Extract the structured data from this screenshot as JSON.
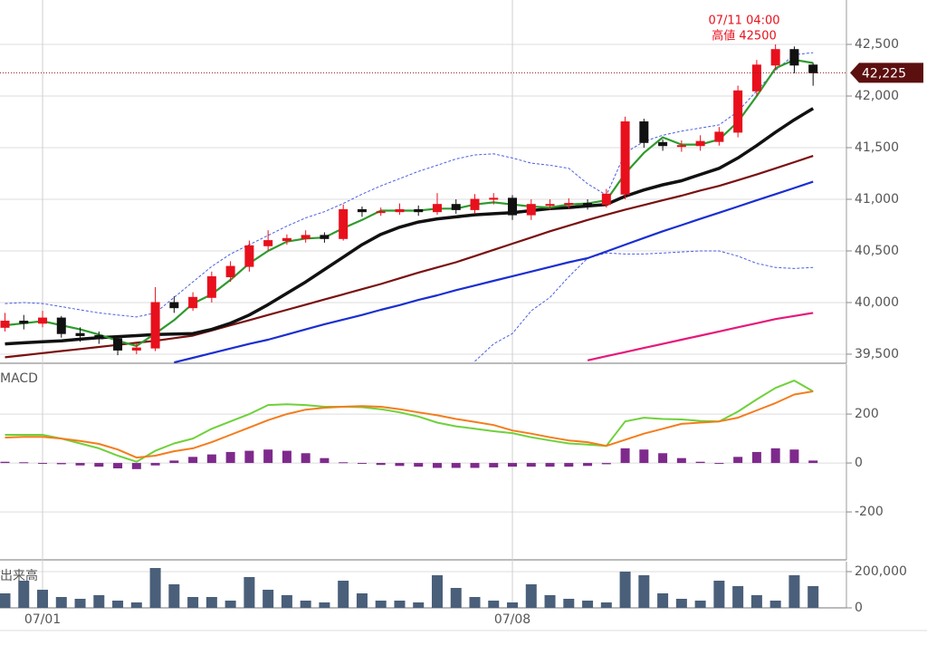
{
  "chart_data": [
    {
      "type": "candlestick",
      "ylim": [
        39412,
        42930
      ],
      "yticks": [
        {
          "value": 39500,
          "label": "39,500"
        },
        {
          "value": 40000,
          "label": "40,000"
        },
        {
          "value": 40500,
          "label": "40,500"
        },
        {
          "value": 41000,
          "label": "41,000"
        },
        {
          "value": 41500,
          "label": "41,500"
        },
        {
          "value": 42000,
          "label": "42,000"
        },
        {
          "value": 42500,
          "label": "42,500"
        }
      ],
      "grid": true,
      "up_color": "#e8101c",
      "down_color": "#111111",
      "open": [
        39760,
        39820,
        39800,
        39850,
        39700,
        39680,
        39650,
        39540,
        39560,
        40000,
        39950,
        40050,
        40250,
        40350,
        40550,
        40600,
        40620,
        40650,
        40620,
        40900,
        40880,
        40880,
        40900,
        40880,
        40950,
        40900,
        41000,
        41010,
        40850,
        40950,
        40950,
        40960,
        40950,
        41050,
        41750,
        41550,
        41520,
        41520,
        41560,
        41650,
        42050,
        42300,
        42450,
        42300
      ],
      "high": [
        39900,
        39880,
        39920,
        39870,
        39760,
        39720,
        39680,
        39600,
        40150,
        40060,
        40100,
        40300,
        40400,
        40600,
        40700,
        40660,
        40700,
        40680,
        40950,
        40930,
        40920,
        40960,
        40940,
        41060,
        41000,
        41050,
        41060,
        41040,
        41000,
        41000,
        41010,
        41000,
        41100,
        41800,
        41780,
        41580,
        41570,
        41620,
        41700,
        42100,
        42350,
        42500,
        42480,
        42320
      ],
      "low": [
        39720,
        39740,
        39760,
        39660,
        39620,
        39600,
        39490,
        39500,
        39530,
        39900,
        39920,
        40000,
        40200,
        40300,
        40500,
        40560,
        40580,
        40580,
        40600,
        40830,
        40840,
        40850,
        40840,
        40850,
        40860,
        40860,
        40950,
        40800,
        40800,
        40900,
        40910,
        40900,
        40920,
        41000,
        41500,
        41470,
        41460,
        41470,
        41520,
        41600,
        42000,
        42250,
        42220,
        42100
      ],
      "close": [
        39820,
        39800,
        39850,
        39700,
        39680,
        39650,
        39540,
        39560,
        40000,
        39950,
        40050,
        40250,
        40350,
        40550,
        40600,
        40620,
        40650,
        40620,
        40900,
        40880,
        40880,
        40900,
        40880,
        40950,
        40900,
        41000,
        41010,
        40850,
        40950,
        40950,
        40960,
        40950,
        41050,
        41750,
        41550,
        41520,
        41520,
        41560,
        41650,
        42050,
        42300,
        42450,
        42300,
        42225
      ],
      "lines": [
        {
          "color": "#4a5ee0",
          "dash": true,
          "values": [
            39990,
            40000,
            39990,
            39960,
            39930,
            39900,
            39880,
            39860,
            39900,
            40050,
            40200,
            40350,
            40470,
            40560,
            40650,
            40740,
            40820,
            40880,
            40960,
            41050,
            41130,
            41200,
            41270,
            41330,
            41390,
            41430,
            41440,
            41400,
            41350,
            41330,
            41300,
            41150,
            41040,
            41450,
            41560,
            41620,
            41660,
            41690,
            41720,
            41850,
            42050,
            42250,
            42400,
            42420
          ]
        },
        {
          "color": "#4a5ee0",
          "dash": true,
          "values": [
            null,
            null,
            null,
            null,
            null,
            null,
            null,
            null,
            null,
            null,
            null,
            null,
            null,
            null,
            null,
            null,
            null,
            null,
            null,
            null,
            null,
            null,
            null,
            null,
            null,
            39430,
            39600,
            39700,
            39920,
            40050,
            40250,
            40430,
            40480,
            40470,
            40470,
            40480,
            40490,
            40500,
            40500,
            40450,
            40380,
            40340,
            40330,
            40340
          ]
        },
        {
          "color": "#e5197a",
          "dash": false,
          "values": [
            null,
            null,
            null,
            null,
            null,
            null,
            null,
            null,
            null,
            null,
            null,
            null,
            null,
            null,
            null,
            null,
            null,
            null,
            null,
            null,
            null,
            null,
            null,
            null,
            null,
            null,
            null,
            null,
            null,
            null,
            null,
            39440,
            39480,
            39520,
            39560,
            39600,
            39640,
            39680,
            39720,
            39760,
            39800,
            39840,
            39870,
            39900
          ]
        },
        {
          "color": "#1a2fd0",
          "dash": false,
          "values": [
            null,
            null,
            null,
            null,
            null,
            null,
            null,
            null,
            null,
            39420,
            39465,
            39510,
            39555,
            39600,
            39640,
            39690,
            39740,
            39790,
            39835,
            39880,
            39930,
            39975,
            40025,
            40070,
            40120,
            40165,
            40210,
            40255,
            40300,
            40345,
            40390,
            40430,
            40495,
            40560,
            40625,
            40690,
            40750,
            40810,
            40870,
            40930,
            40990,
            41050,
            41110,
            41170
          ]
        },
        {
          "color": "#7a1010",
          "dash": false,
          "values": [
            39470,
            39490,
            39510,
            39530,
            39550,
            39570,
            39590,
            39610,
            39630,
            39655,
            39680,
            39730,
            39780,
            39830,
            39880,
            39930,
            39980,
            40030,
            40080,
            40130,
            40180,
            40235,
            40290,
            40340,
            40390,
            40450,
            40510,
            40570,
            40630,
            40690,
            40745,
            40800,
            40850,
            40900,
            40945,
            40990,
            41035,
            41085,
            41130,
            41185,
            41240,
            41300,
            41360,
            41420
          ]
        },
        {
          "color": "#111111",
          "dash": false,
          "values": [
            39600,
            39610,
            39620,
            39630,
            39645,
            39660,
            39670,
            39680,
            39690,
            39695,
            39700,
            39740,
            39800,
            39880,
            39980,
            40090,
            40200,
            40320,
            40440,
            40560,
            40660,
            40730,
            40780,
            40810,
            40830,
            40850,
            40860,
            40870,
            40890,
            40910,
            40920,
            40935,
            40950,
            41030,
            41090,
            41140,
            41180,
            41240,
            41300,
            41400,
            41520,
            41650,
            41770,
            41880
          ]
        },
        {
          "color": "#2e9a2e",
          "dash": false,
          "values": [
            39780,
            39800,
            39820,
            39780,
            39740,
            39690,
            39630,
            39580,
            39700,
            39830,
            39990,
            40080,
            40220,
            40380,
            40500,
            40590,
            40620,
            40630,
            40720,
            40800,
            40890,
            40890,
            40890,
            40910,
            40910,
            40950,
            40970,
            40950,
            40930,
            40920,
            40950,
            40960,
            40990,
            41250,
            41450,
            41600,
            41530,
            41530,
            41580,
            41750,
            42000,
            42270,
            42350,
            42320
          ]
        }
      ],
      "last_price": {
        "value": 42225,
        "label": "42,225"
      },
      "annotation": [
        "07/11 04:00",
        "高値 42500"
      ]
    },
    {
      "type": "macd",
      "title": "MACD",
      "ylim": [
        -396,
        404
      ],
      "yticks": [
        -200,
        0,
        200
      ],
      "grid": true,
      "hist_color": "#7e2a8c",
      "histogram": [
        5,
        3,
        0,
        -5,
        -10,
        -15,
        -22,
        -25,
        -10,
        10,
        25,
        35,
        45,
        50,
        55,
        50,
        40,
        20,
        3,
        -3,
        -8,
        -12,
        -15,
        -20,
        -20,
        -20,
        -18,
        -15,
        -15,
        -15,
        -15,
        -12,
        -5,
        60,
        55,
        40,
        20,
        5,
        0,
        25,
        45,
        60,
        55,
        10
      ],
      "series": [
        {
          "color": "#6fd13a",
          "values": [
            115,
            115,
            115,
            100,
            80,
            60,
            30,
            5,
            50,
            80,
            100,
            140,
            170,
            200,
            237,
            240,
            237,
            230,
            230,
            228,
            220,
            207,
            190,
            165,
            150,
            140,
            130,
            122,
            105,
            92,
            80,
            75,
            70,
            170,
            185,
            180,
            178,
            172,
            170,
            210,
            260,
            307,
            337,
            293
          ]
        },
        {
          "color": "#f47c1c",
          "values": [
            104,
            107,
            107,
            100,
            90,
            78,
            55,
            22,
            30,
            48,
            60,
            85,
            115,
            145,
            175,
            200,
            218,
            226,
            230,
            233,
            230,
            220,
            207,
            195,
            180,
            168,
            155,
            133,
            120,
            105,
            92,
            85,
            70,
            95,
            120,
            140,
            160,
            165,
            170,
            185,
            215,
            245,
            280,
            293
          ]
        }
      ]
    },
    {
      "type": "bar",
      "title": "出来高",
      "ylim": [
        0,
        255000
      ],
      "yticks": [
        0,
        {
          "value": 200000,
          "label": "200,000"
        }
      ],
      "grid": true,
      "color": "#4a5f7a",
      "categories": [
        null,
        null,
        "07/01",
        null,
        null,
        null,
        null,
        null,
        null,
        null,
        null,
        null,
        null,
        null,
        null,
        null,
        null,
        null,
        null,
        null,
        null,
        null,
        null,
        null,
        null,
        null,
        null,
        "07/08",
        null,
        null,
        null,
        null,
        null,
        null,
        null,
        null,
        null,
        null,
        null,
        null,
        null,
        null,
        null,
        null
      ],
      "values": [
        80000,
        150000,
        100000,
        60000,
        50000,
        70000,
        40000,
        30000,
        220000,
        130000,
        60000,
        60000,
        40000,
        170000,
        100000,
        70000,
        40000,
        30000,
        150000,
        80000,
        40000,
        40000,
        30000,
        180000,
        110000,
        60000,
        40000,
        30000,
        130000,
        70000,
        50000,
        40000,
        30000,
        200000,
        180000,
        80000,
        50000,
        40000,
        150000,
        120000,
        70000,
        40000,
        180000,
        120000
      ]
    }
  ]
}
